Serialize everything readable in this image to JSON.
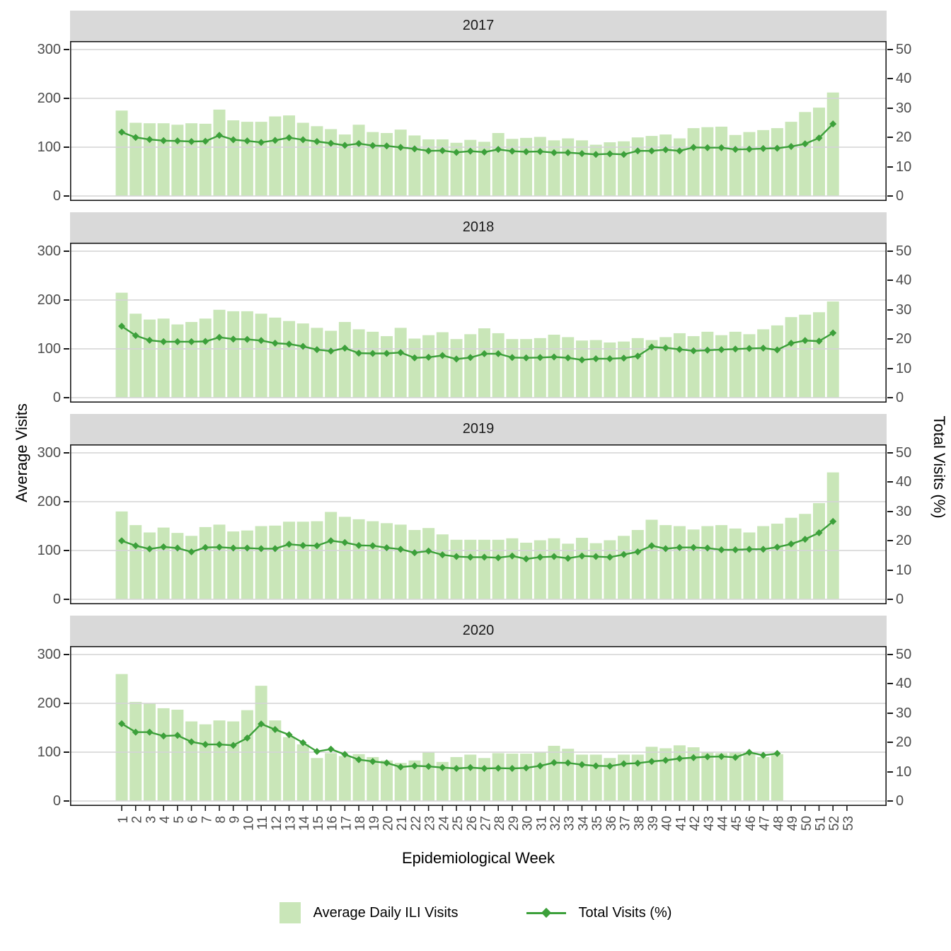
{
  "chart_data": {
    "type": "bar+line dual-axis, faceted by year (4 stacked panels)",
    "title": "",
    "x_axis": {
      "label": "Epidemiological Week",
      "ticks": [
        1,
        2,
        3,
        4,
        5,
        6,
        7,
        8,
        9,
        10,
        11,
        12,
        13,
        14,
        15,
        16,
        17,
        18,
        19,
        20,
        21,
        22,
        23,
        24,
        25,
        26,
        27,
        28,
        29,
        30,
        31,
        32,
        33,
        34,
        35,
        36,
        37,
        38,
        39,
        40,
        41,
        42,
        43,
        44,
        45,
        46,
        47,
        48,
        49,
        50,
        51,
        52,
        53
      ]
    },
    "y_left": {
      "label": "Average Visits",
      "ticks": [
        0,
        100,
        200,
        300
      ],
      "range": [
        0,
        310
      ]
    },
    "y_right": {
      "label": "Total Visits (%)",
      "ticks": [
        0,
        10,
        20,
        30,
        40,
        50
      ],
      "range": [
        0,
        51.7
      ]
    },
    "grid": "horizontal major gridlines only",
    "legend_position": "bottom",
    "legend": [
      {
        "label": "Average Daily ILI Visits",
        "type": "fill",
        "color": "#C9E6B8"
      },
      {
        "label": "Total Visits (%)",
        "type": "line-point",
        "color": "#3CA03A"
      }
    ],
    "facets": [
      {
        "year": "2017",
        "weeks_start": 1,
        "avg_daily_ili_visits": [
          175,
          150,
          149,
          149,
          146,
          149,
          148,
          177,
          155,
          152,
          152,
          163,
          165,
          150,
          143,
          137,
          126,
          146,
          131,
          129,
          136,
          124,
          116,
          116,
          109,
          115,
          111,
          129,
          117,
          119,
          121,
          114,
          118,
          114,
          105,
          110,
          112,
          120,
          123,
          126,
          118,
          139,
          141,
          142,
          125,
          131,
          135,
          139,
          152,
          172,
          181,
          212
        ],
        "total_visits_pct": [
          21.8,
          20.0,
          19.3,
          18.9,
          18.8,
          18.6,
          18.7,
          20.7,
          19.2,
          18.8,
          18.3,
          19.0,
          19.9,
          19.2,
          18.6,
          18.0,
          17.3,
          17.9,
          17.2,
          17.1,
          16.6,
          16.1,
          15.4,
          15.5,
          14.9,
          15.3,
          15.0,
          15.9,
          15.3,
          15.1,
          15.2,
          14.8,
          14.8,
          14.5,
          14.2,
          14.4,
          14.2,
          15.4,
          15.4,
          15.8,
          15.4,
          16.6,
          16.5,
          16.5,
          15.9,
          16.0,
          16.2,
          16.3,
          16.9,
          17.8,
          19.8,
          24.6
        ]
      },
      {
        "year": "2018",
        "weeks_start": 1,
        "avg_daily_ili_visits": [
          215,
          172,
          160,
          162,
          150,
          155,
          162,
          180,
          177,
          177,
          172,
          164,
          157,
          152,
          143,
          137,
          155,
          140,
          135,
          126,
          143,
          121,
          128,
          134,
          120,
          130,
          142,
          132,
          120,
          120,
          122,
          129,
          124,
          117,
          118,
          113,
          115,
          122,
          118,
          124,
          132,
          126,
          135,
          128,
          135,
          130,
          140,
          148,
          165,
          170,
          175,
          197
        ],
        "total_visits_pct": [
          24.4,
          21.2,
          19.6,
          19.1,
          19.1,
          19.1,
          19.2,
          20.6,
          20.0,
          19.9,
          19.5,
          18.6,
          18.3,
          17.5,
          16.4,
          15.9,
          16.9,
          15.2,
          15.1,
          15.1,
          15.4,
          13.6,
          13.8,
          14.4,
          13.2,
          13.7,
          15.0,
          15.0,
          13.7,
          13.6,
          13.7,
          13.9,
          13.6,
          12.9,
          13.3,
          13.3,
          13.5,
          14.2,
          17.3,
          17.0,
          16.5,
          16.0,
          16.2,
          16.4,
          16.6,
          16.8,
          16.9,
          16.3,
          18.6,
          19.5,
          19.3,
          22.1
        ]
      },
      {
        "year": "2019",
        "weeks_start": 1,
        "avg_daily_ili_visits": [
          180,
          152,
          137,
          147,
          136,
          130,
          148,
          153,
          139,
          141,
          150,
          151,
          159,
          159,
          160,
          179,
          169,
          164,
          160,
          156,
          153,
          142,
          146,
          133,
          122,
          122,
          122,
          122,
          125,
          116,
          121,
          125,
          114,
          126,
          115,
          121,
          130,
          142,
          163,
          152,
          150,
          143,
          150,
          152,
          145,
          137,
          150,
          155,
          167,
          175,
          197,
          260
        ],
        "total_visits_pct": [
          20.0,
          18.3,
          17.2,
          17.9,
          17.5,
          16.2,
          17.7,
          17.8,
          17.5,
          17.5,
          17.3,
          17.3,
          18.8,
          18.4,
          18.3,
          20.0,
          19.4,
          18.4,
          18.3,
          17.6,
          17.1,
          15.9,
          16.5,
          15.2,
          14.6,
          14.4,
          14.4,
          14.2,
          14.8,
          13.8,
          14.4,
          14.6,
          14.0,
          14.8,
          14.6,
          14.4,
          15.3,
          16.2,
          18.3,
          17.3,
          17.7,
          17.7,
          17.5,
          16.9,
          16.9,
          17.1,
          17.1,
          17.8,
          18.9,
          20.5,
          22.7,
          26.6
        ]
      },
      {
        "year": "2020",
        "weeks_start": 1,
        "avg_daily_ili_visits": [
          260,
          203,
          200,
          190,
          187,
          163,
          157,
          165,
          163,
          186,
          236,
          165,
          131,
          116,
          88,
          98,
          92,
          96,
          90,
          83,
          78,
          83,
          100,
          80,
          90,
          95,
          88,
          98,
          97,
          97,
          100,
          113,
          107,
          95,
          95,
          88,
          95,
          95,
          111,
          108,
          114,
          110,
          100,
          98,
          100,
          100,
          90,
          96
        ],
        "total_visits_pct": [
          26.4,
          23.5,
          23.5,
          22.2,
          22.4,
          20.2,
          19.3,
          19.3,
          19.0,
          21.5,
          26.3,
          24.4,
          22.6,
          19.9,
          16.9,
          17.7,
          15.9,
          14.1,
          13.5,
          13.0,
          11.6,
          12.0,
          11.8,
          11.4,
          11.1,
          11.4,
          11.1,
          11.2,
          11.1,
          11.3,
          12.0,
          13.1,
          13.0,
          12.4,
          12.0,
          11.9,
          12.7,
          12.9,
          13.5,
          13.9,
          14.5,
          14.8,
          15.1,
          15.2,
          14.9,
          16.6,
          15.6,
          16.2
        ]
      }
    ],
    "style": {
      "bar_fill": "#C9E6B8",
      "line_color": "#3CA03A",
      "point_shape": "diamond",
      "strip_bg": "#D9D9D9",
      "strip_text": "#1a1a1a",
      "grid_color": "#D6D6D6",
      "axis_text_color": "#4D4D4D",
      "panel_border": "#1a1a1a",
      "background": "#FFFFFF"
    }
  }
}
